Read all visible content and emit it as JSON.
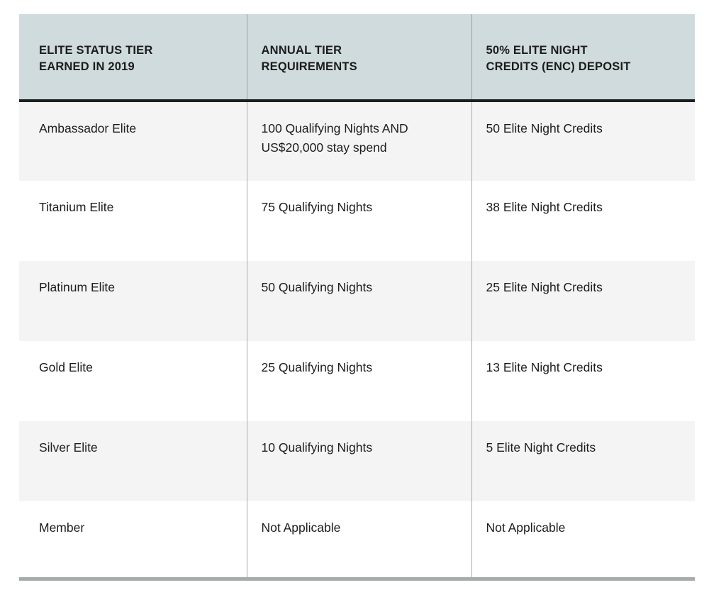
{
  "colors": {
    "header_bg": "#d0dbdd",
    "header_text": "#1c1c1c",
    "header_rule": "#1c1f20",
    "body_text": "#1d1d1d",
    "row_alt_bg": "#f4f4f4",
    "row_bg": "#ffffff",
    "divider": "#ababab",
    "header_divider": "#96a0a2",
    "bottom_bar": "#a8abac"
  },
  "table": {
    "headers": [
      {
        "line1": "ELITE STATUS TIER",
        "line2": "EARNED IN 2019"
      },
      {
        "line1": "ANNUAL TIER",
        "line2": "REQUIREMENTS"
      },
      {
        "line1": "50% ELITE NIGHT",
        "line2": "CREDITS (ENC) DEPOSIT"
      }
    ],
    "rows": [
      {
        "tier": "Ambassador Elite",
        "requirement": "100 Qualifying Nights AND US$20,000 stay spend",
        "deposit": "50 Elite Night Credits"
      },
      {
        "tier": "Titanium Elite",
        "requirement": "75 Qualifying Nights",
        "deposit": "38 Elite Night Credits"
      },
      {
        "tier": "Platinum Elite",
        "requirement": "50 Qualifying Nights",
        "deposit": "25 Elite Night Credits"
      },
      {
        "tier": "Gold Elite",
        "requirement": "25 Qualifying Nights",
        "deposit": "13 Elite Night Credits"
      },
      {
        "tier": "Silver Elite",
        "requirement": "10 Qualifying Nights",
        "deposit": "5 Elite Night Credits"
      },
      {
        "tier": "Member",
        "requirement": "Not Applicable",
        "deposit": "Not Applicable"
      }
    ]
  }
}
